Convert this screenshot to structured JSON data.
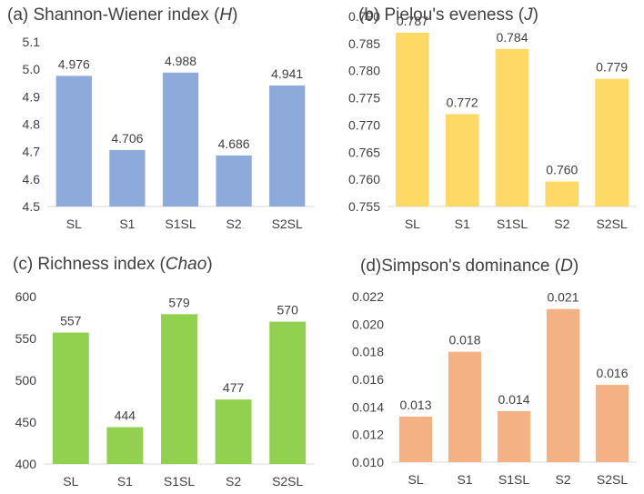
{
  "chart_data": [
    {
      "type": "bar",
      "title_prefix": "(a) Shannon-Wiener index (",
      "title_symbol": "H",
      "title_suffix": ")",
      "categories": [
        "SL",
        "S1",
        "S1SL",
        "S2",
        "S2SL"
      ],
      "values": [
        4.976,
        4.706,
        4.988,
        4.686,
        4.941
      ],
      "labels": [
        "4.976",
        "4.706",
        "4.988",
        "4.686",
        "4.941"
      ],
      "ylim": [
        4.5,
        5.1
      ],
      "yticks": [
        "4.5",
        "4.6",
        "4.7",
        "4.8",
        "4.9",
        "5.0",
        "5.1"
      ],
      "color": "#8eaadb"
    },
    {
      "type": "bar",
      "title_prefix": "(b) Pielou's eveness (",
      "title_symbol": "J",
      "title_suffix": ")",
      "categories": [
        "SL",
        "S1",
        "S1SL",
        "S2",
        "S2SL"
      ],
      "values": [
        0.787,
        0.772,
        0.784,
        0.7596,
        0.7785
      ],
      "labels": [
        "0.787",
        "0.772",
        "0.784",
        "0.760",
        "0.779"
      ],
      "ylim": [
        0.755,
        0.79
      ],
      "yticks": [
        "0.755",
        "0.760",
        "0.765",
        "0.770",
        "0.775",
        "0.780",
        "0.785",
        "0.790"
      ],
      "color": "#ffd966"
    },
    {
      "type": "bar",
      "title_prefix": "(c) Richness index (",
      "title_symbol": "Chao",
      "title_suffix": ")",
      "categories": [
        "SL",
        "S1",
        "S1SL",
        "S2",
        "S2SL"
      ],
      "values": [
        557,
        444,
        579,
        477,
        570
      ],
      "labels": [
        "557",
        "444",
        "579",
        "477",
        "570"
      ],
      "ylim": [
        400,
        600
      ],
      "yticks": [
        "400",
        "450",
        "500",
        "550",
        "600"
      ],
      "color": "#92d050"
    },
    {
      "type": "bar",
      "title_prefix": "(d)Simpson's dominance (",
      "title_symbol": "D",
      "title_suffix": ")",
      "categories": [
        "SL",
        "S1",
        "S1SL",
        "S2",
        "S2SL"
      ],
      "values": [
        0.0133,
        0.018,
        0.0137,
        0.0211,
        0.0156
      ],
      "labels": [
        "0.013",
        "0.018",
        "0.014",
        "0.021",
        "0.016"
      ],
      "ylim": [
        0.01,
        0.022
      ],
      "yticks": [
        "0.010",
        "0.012",
        "0.014",
        "0.016",
        "0.018",
        "0.020",
        "0.022"
      ],
      "color": "#f4b183"
    }
  ]
}
